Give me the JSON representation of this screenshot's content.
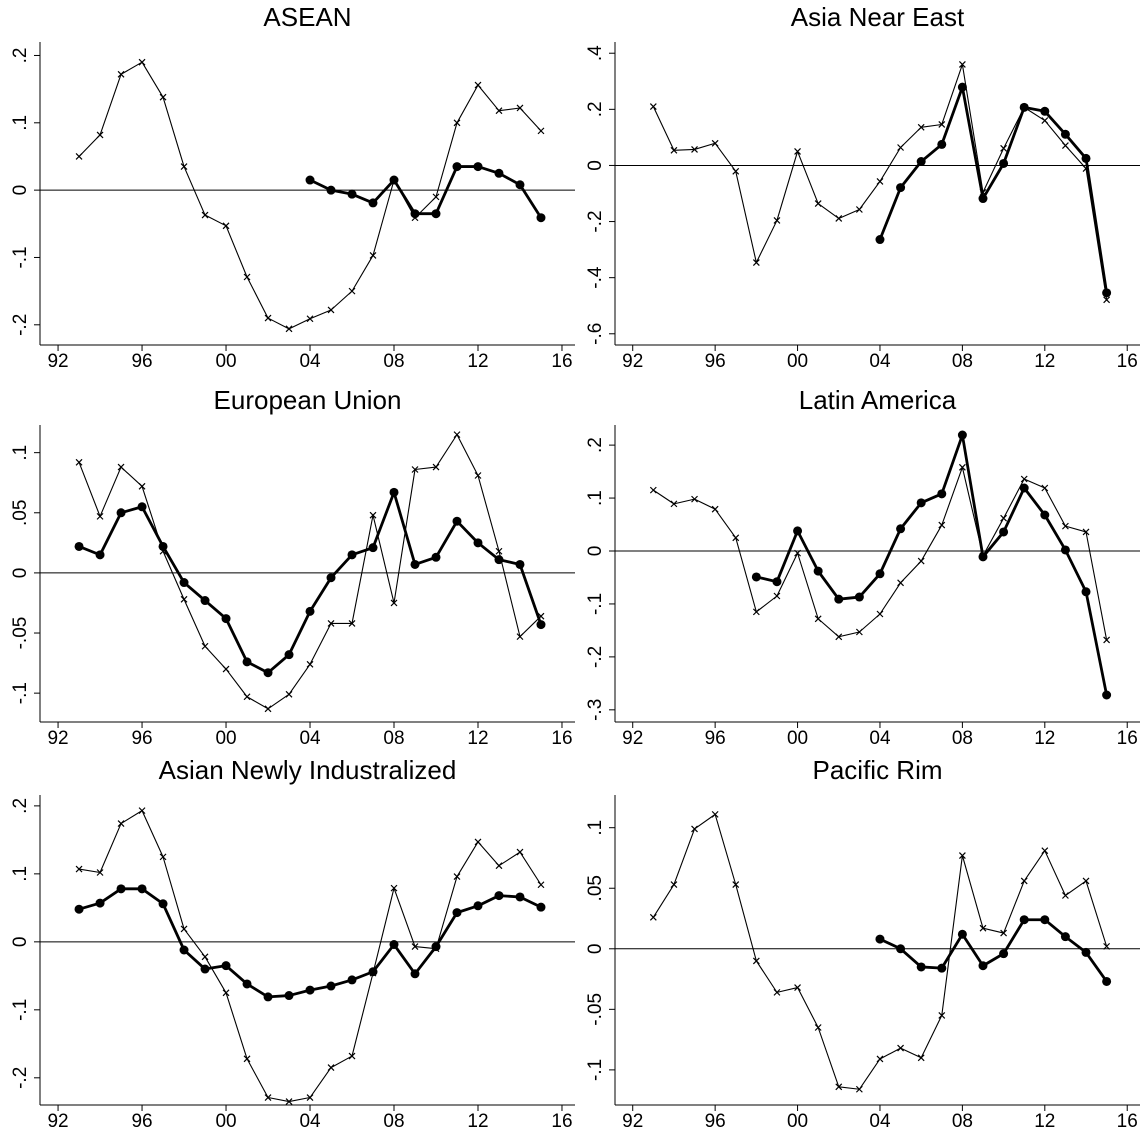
{
  "chart_data": [
    {
      "type": "line",
      "title": "ASEAN",
      "x": [
        1993,
        1994,
        1995,
        1996,
        1997,
        1998,
        1999,
        2000,
        2001,
        2002,
        2003,
        2004,
        2005,
        2006,
        2007,
        2008,
        2009,
        2010,
        2011,
        2012,
        2013,
        2014,
        2015
      ],
      "series": [
        {
          "color": "#000000",
          "marker": "x",
          "values": [
            0.05,
            0.082,
            0.172,
            0.19,
            0.138,
            0.035,
            -0.037,
            -0.053,
            -0.129,
            -0.19,
            -0.206,
            -0.191,
            -0.178,
            -0.15,
            -0.097,
            0.015,
            -0.041,
            -0.01,
            0.1,
            0.156,
            0.118,
            0.122,
            0.088
          ]
        },
        {
          "color": "#000000",
          "marker": "circle",
          "values": [
            null,
            null,
            null,
            null,
            null,
            null,
            null,
            null,
            null,
            null,
            null,
            0.015,
            0,
            -0.006,
            -0.019,
            0.015,
            -0.035,
            -0.035,
            0.035,
            0.035,
            0.025,
            0.008,
            -0.041
          ]
        }
      ],
      "xlim": [
        1991.14,
        2016.62
      ],
      "xticks": [
        {
          "value": 1992,
          "label": "92"
        },
        {
          "value": 1996,
          "label": "96"
        },
        {
          "value": 2000,
          "label": "00"
        },
        {
          "value": 2004,
          "label": "04"
        },
        {
          "value": 2008,
          "label": "08"
        },
        {
          "value": 2012,
          "label": "12"
        },
        {
          "value": 2016,
          "label": "16"
        }
      ],
      "ylim": [
        -0.23,
        0.22
      ],
      "yticks": [
        {
          "value": 0.2,
          "label": ".2"
        },
        {
          "value": 0.1,
          "label": ".1"
        },
        0,
        {
          "value": -0.1,
          "label": "-.1"
        },
        {
          "value": -0.2,
          "label": "-.2"
        }
      ],
      "zero_line": true
    },
    {
      "type": "line",
      "title": "Asia Near East",
      "x": [
        1993,
        1994,
        1995,
        1996,
        1997,
        1998,
        1999,
        2000,
        2001,
        2002,
        2003,
        2004,
        2005,
        2006,
        2007,
        2008,
        2009,
        2010,
        2011,
        2012,
        2013,
        2014,
        2015
      ],
      "series": [
        {
          "color": "#000000",
          "marker": "x",
          "values": [
            0.21,
            0.054,
            0.057,
            0.079,
            -0.021,
            -0.346,
            -0.196,
            0.05,
            -0.136,
            -0.189,
            -0.157,
            -0.057,
            0.064,
            0.136,
            0.146,
            0.36,
            -0.096,
            0.061,
            0.207,
            0.16,
            0.071,
            -0.011,
            -0.479
          ]
        },
        {
          "color": "#000000",
          "marker": "circle",
          "values": [
            null,
            null,
            null,
            null,
            null,
            null,
            null,
            null,
            null,
            null,
            null,
            -0.264,
            -0.079,
            0.014,
            0.075,
            0.279,
            -0.118,
            0.007,
            0.207,
            0.193,
            0.111,
            0.025,
            -0.454
          ]
        }
      ],
      "xlim": [
        1991.14,
        2016.62
      ],
      "xticks": [
        {
          "value": 1992,
          "label": "92"
        },
        {
          "value": 1996,
          "label": "96"
        },
        {
          "value": 2000,
          "label": "00"
        },
        {
          "value": 2004,
          "label": "04"
        },
        {
          "value": 2008,
          "label": "08"
        },
        {
          "value": 2012,
          "label": "12"
        },
        {
          "value": 2016,
          "label": "16"
        }
      ],
      "ylim": [
        -0.64,
        0.44
      ],
      "yticks": [
        {
          "value": 0.4,
          "label": ".4"
        },
        {
          "value": 0.2,
          "label": ".2"
        },
        0,
        {
          "value": -0.2,
          "label": "-.2"
        },
        {
          "value": -0.4,
          "label": "-.4"
        },
        {
          "value": -0.6,
          "label": "-.6"
        }
      ],
      "zero_line": true
    },
    {
      "type": "line",
      "title": "European Union",
      "x": [
        1993,
        1994,
        1995,
        1996,
        1997,
        1998,
        1999,
        2000,
        2001,
        2002,
        2003,
        2004,
        2005,
        2006,
        2007,
        2008,
        2009,
        2010,
        2011,
        2012,
        2013,
        2014,
        2015
      ],
      "series": [
        {
          "color": "#000000",
          "marker": "x",
          "values": [
            0.092,
            0.047,
            0.088,
            0.072,
            0.018,
            -0.022,
            -0.061,
            -0.08,
            -0.103,
            -0.113,
            -0.101,
            -0.076,
            -0.042,
            -0.042,
            0.048,
            -0.025,
            0.086,
            0.088,
            0.115,
            0.081,
            0.018,
            -0.053,
            -0.036
          ]
        },
        {
          "color": "#000000",
          "marker": "circle",
          "values": [
            0.022,
            0.015,
            0.05,
            0.055,
            0.022,
            -0.008,
            -0.023,
            -0.038,
            -0.074,
            -0.083,
            -0.068,
            -0.032,
            -0.004,
            0.015,
            0.021,
            0.067,
            0.007,
            0.013,
            0.043,
            0.025,
            0.011,
            0.007,
            -0.043
          ]
        }
      ],
      "xlim": [
        1991.14,
        2016.62
      ],
      "xticks": [
        {
          "value": 1992,
          "label": "92"
        },
        {
          "value": 1996,
          "label": "96"
        },
        {
          "value": 2000,
          "label": "00"
        },
        {
          "value": 2004,
          "label": "04"
        },
        {
          "value": 2008,
          "label": "08"
        },
        {
          "value": 2012,
          "label": "12"
        },
        {
          "value": 2016,
          "label": "16"
        }
      ],
      "ylim": [
        -0.124,
        0.123
      ],
      "yticks": [
        {
          "value": 0.1,
          "label": ".1"
        },
        {
          "value": 0.05,
          "label": ".05"
        },
        0,
        {
          "value": -0.05,
          "label": "-.05"
        },
        {
          "value": -0.1,
          "label": "-.1"
        }
      ],
      "zero_line": true
    },
    {
      "type": "line",
      "title": "Latin America",
      "x": [
        1993,
        1994,
        1995,
        1996,
        1997,
        1998,
        1999,
        2000,
        2001,
        2002,
        2003,
        2004,
        2005,
        2006,
        2007,
        2008,
        2009,
        2010,
        2011,
        2012,
        2013,
        2014,
        2015
      ],
      "series": [
        {
          "color": "#000000",
          "marker": "x",
          "values": [
            0.115,
            0.089,
            0.098,
            0.079,
            0.025,
            -0.115,
            -0.085,
            -0.004,
            -0.128,
            -0.162,
            -0.153,
            -0.119,
            -0.06,
            -0.019,
            0.049,
            0.158,
            -0.009,
            0.062,
            0.136,
            0.119,
            0.047,
            0.036,
            -0.168
          ]
        },
        {
          "color": "#000000",
          "marker": "circle",
          "values": [
            null,
            null,
            null,
            null,
            null,
            -0.049,
            -0.058,
            0.038,
            -0.038,
            -0.091,
            -0.087,
            -0.043,
            0.042,
            0.091,
            0.108,
            0.219,
            -0.011,
            0.036,
            0.119,
            0.068,
            0.002,
            -0.077,
            -0.272
          ]
        }
      ],
      "xlim": [
        1991.14,
        2016.62
      ],
      "xticks": [
        {
          "value": 1992,
          "label": "92"
        },
        {
          "value": 1996,
          "label": "96"
        },
        {
          "value": 2000,
          "label": "00"
        },
        {
          "value": 2004,
          "label": "04"
        },
        {
          "value": 2008,
          "label": "08"
        },
        {
          "value": 2012,
          "label": "12"
        },
        {
          "value": 2016,
          "label": "16"
        }
      ],
      "ylim": [
        -0.323,
        0.238
      ],
      "yticks": [
        {
          "value": 0.2,
          "label": ".2"
        },
        {
          "value": 0.1,
          "label": ".1"
        },
        0,
        {
          "value": -0.1,
          "label": "-.1"
        },
        {
          "value": -0.2,
          "label": "-.2"
        },
        {
          "value": -0.3,
          "label": "-.3"
        }
      ],
      "zero_line": true
    },
    {
      "type": "line",
      "title": "Asian Newly Industralized",
      "x": [
        1993,
        1994,
        1995,
        1996,
        1997,
        1998,
        1999,
        2000,
        2001,
        2002,
        2003,
        2004,
        2005,
        2006,
        2007,
        2008,
        2009,
        2010,
        2011,
        2012,
        2013,
        2014,
        2015
      ],
      "series": [
        {
          "color": "#000000",
          "marker": "x",
          "values": [
            0.107,
            0.102,
            0.174,
            0.193,
            0.125,
            0.019,
            -0.022,
            -0.075,
            -0.172,
            -0.229,
            -0.235,
            -0.229,
            -0.185,
            -0.168,
            -0.046,
            0.079,
            -0.007,
            -0.01,
            0.096,
            0.147,
            0.112,
            0.132,
            0.084
          ]
        },
        {
          "color": "#000000",
          "marker": "circle",
          "values": [
            0.048,
            0.057,
            0.078,
            0.078,
            0.056,
            -0.012,
            -0.04,
            -0.035,
            -0.062,
            -0.081,
            -0.079,
            -0.071,
            -0.065,
            -0.056,
            -0.044,
            -0.004,
            -0.047,
            -0.007,
            0.043,
            0.053,
            0.068,
            0.066,
            0.051
          ]
        }
      ],
      "xlim": [
        1991.14,
        2016.62
      ],
      "xticks": [
        {
          "value": 1992,
          "label": "92"
        },
        {
          "value": 1996,
          "label": "96"
        },
        {
          "value": 2000,
          "label": "00"
        },
        {
          "value": 2004,
          "label": "04"
        },
        {
          "value": 2008,
          "label": "08"
        },
        {
          "value": 2012,
          "label": "12"
        },
        {
          "value": 2016,
          "label": "16"
        }
      ],
      "ylim": [
        -0.24,
        0.216
      ],
      "yticks": [
        {
          "value": 0.2,
          "label": ".2"
        },
        {
          "value": 0.1,
          "label": ".1"
        },
        0,
        {
          "value": -0.1,
          "label": "-.1"
        },
        {
          "value": -0.2,
          "label": "-.2"
        }
      ],
      "zero_line": true
    },
    {
      "type": "line",
      "title": "Pacific Rim",
      "x": [
        1993,
        1994,
        1995,
        1996,
        1997,
        1998,
        1999,
        2000,
        2001,
        2002,
        2003,
        2004,
        2005,
        2006,
        2007,
        2008,
        2009,
        2010,
        2011,
        2012,
        2013,
        2014,
        2015
      ],
      "series": [
        {
          "color": "#000000",
          "marker": "x",
          "values": [
            0.026,
            0.053,
            0.099,
            0.111,
            0.053,
            -0.01,
            -0.036,
            -0.032,
            -0.065,
            -0.114,
            -0.116,
            -0.091,
            -0.082,
            -0.09,
            -0.055,
            0.077,
            0.017,
            0.013,
            0.056,
            0.081,
            0.044,
            0.056,
            0.002
          ]
        },
        {
          "color": "#000000",
          "marker": "circle",
          "values": [
            null,
            null,
            null,
            null,
            null,
            null,
            null,
            null,
            null,
            null,
            null,
            0.008,
            0,
            -0.015,
            -0.016,
            0.012,
            -0.014,
            -0.004,
            0.024,
            0.024,
            0.01,
            -0.003,
            -0.027
          ]
        }
      ],
      "xlim": [
        1991.14,
        2016.62
      ],
      "xticks": [
        {
          "value": 1992,
          "label": "92"
        },
        {
          "value": 1996,
          "label": "96"
        },
        {
          "value": 2000,
          "label": "00"
        },
        {
          "value": 2004,
          "label": "04"
        },
        {
          "value": 2008,
          "label": "08"
        },
        {
          "value": 2012,
          "label": "12"
        },
        {
          "value": 2016,
          "label": "16"
        }
      ],
      "ylim": [
        -0.129,
        0.127
      ],
      "yticks": [
        {
          "value": 0.1,
          "label": ".1"
        },
        {
          "value": 0.05,
          "label": ".05"
        },
        0,
        {
          "value": -0.05,
          "label": "-.05"
        },
        {
          "value": -0.1,
          "label": "-.1"
        }
      ],
      "zero_line": true
    }
  ]
}
